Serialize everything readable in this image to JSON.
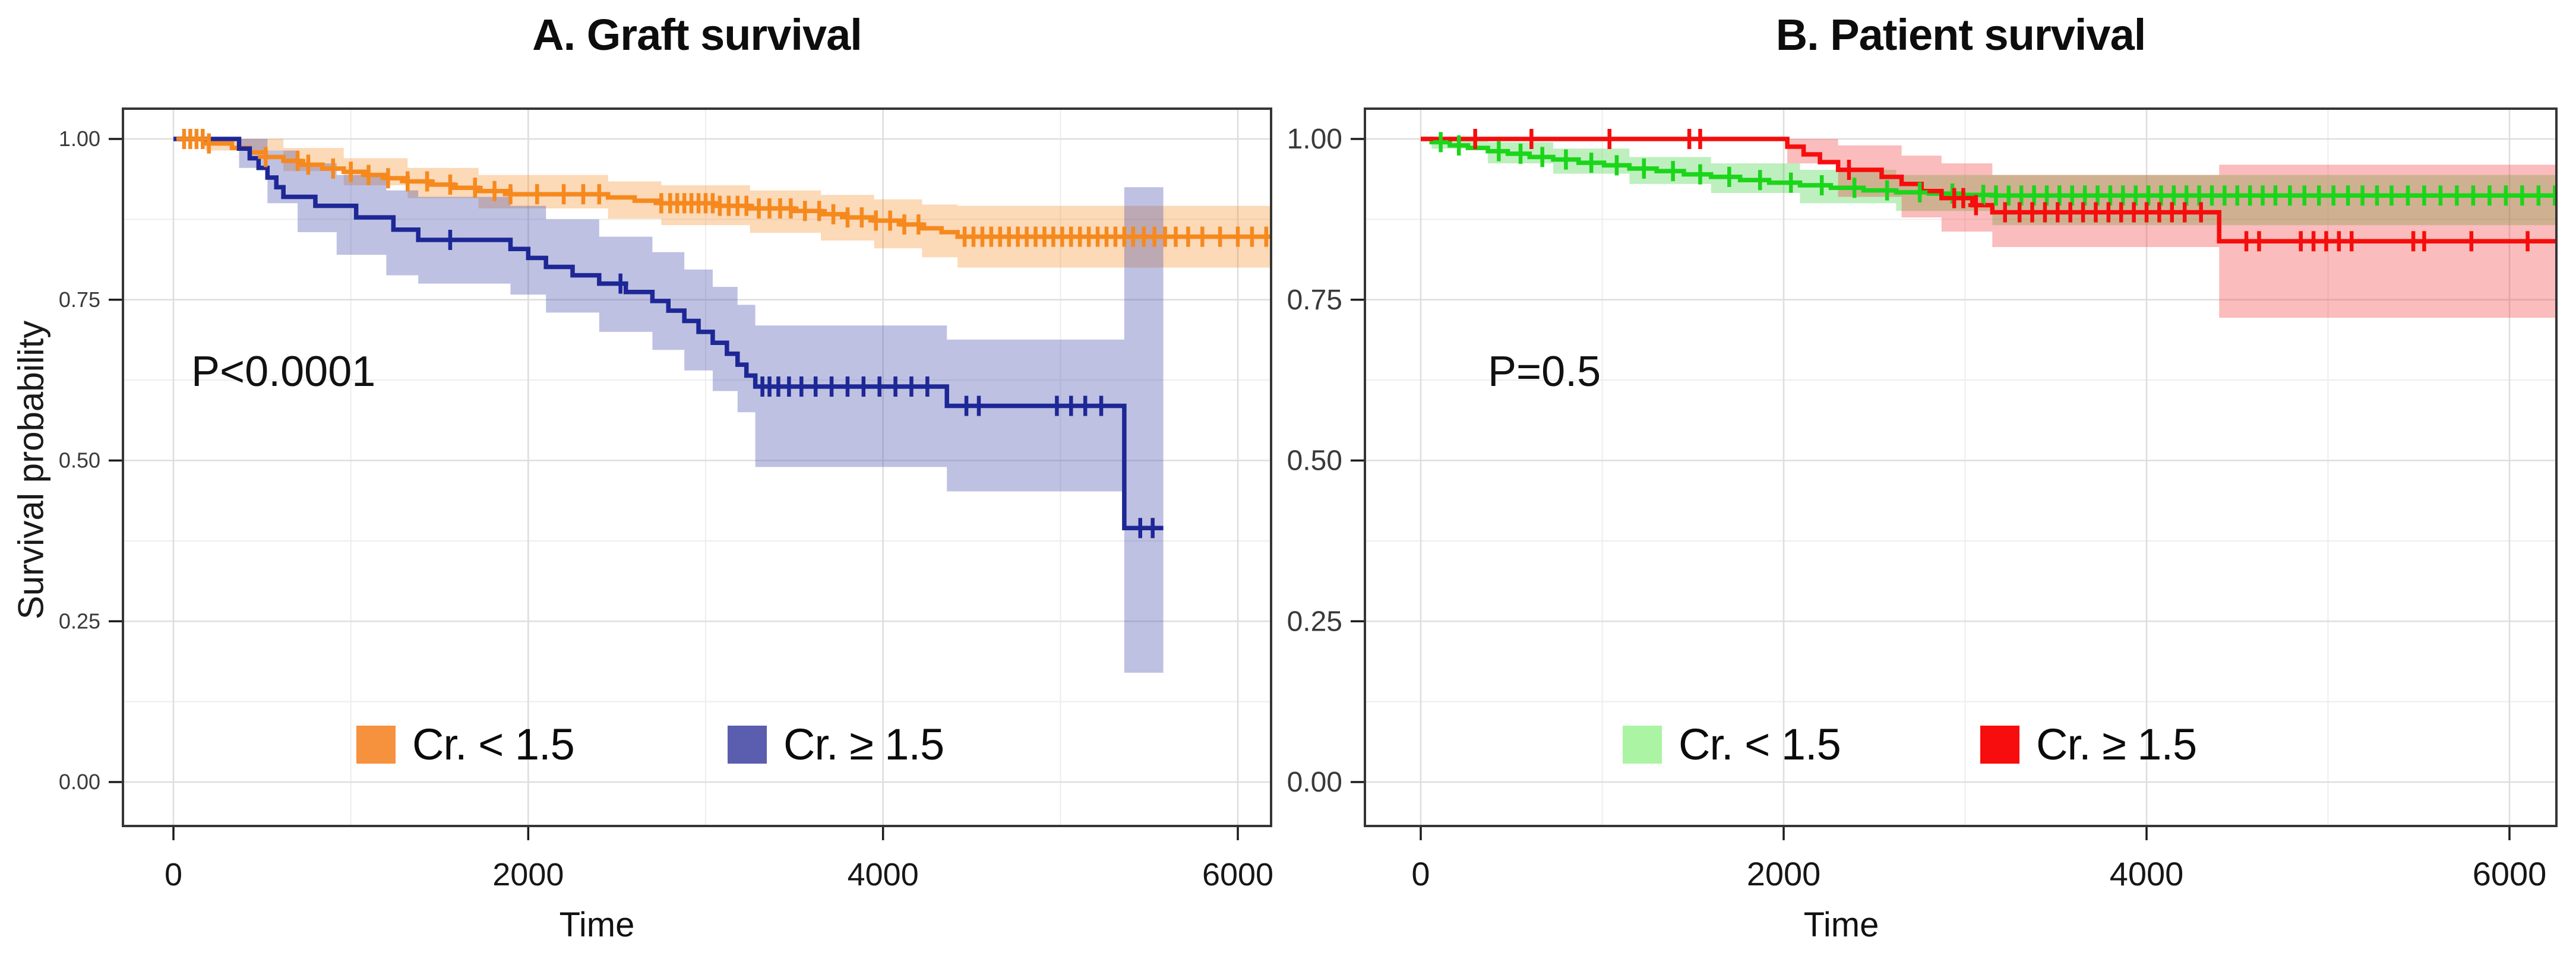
{
  "figure_title": "",
  "chart_data": [
    {
      "type": "km_step",
      "panel": "A",
      "title": "A. Graft survival",
      "pvalue_label": "P<0.0001",
      "xlabel": "Time",
      "ylabel": "Survival probability",
      "xlim": [
        -285,
        6190
      ],
      "ylim": [
        -0.07,
        1.05
      ],
      "grid": true,
      "legend_position": "bottom-inside",
      "x_ticks": [
        0,
        2000,
        4000,
        6000
      ],
      "x_tick_labels": [
        "0",
        "2000",
        "4000",
        "6000"
      ],
      "x_minor": [
        1000,
        3000,
        5000
      ],
      "y_tick_values": [
        1.0,
        0.75,
        0.5,
        0.25,
        0.0
      ],
      "y_tick_labels": [
        "1.00",
        "0.75",
        "0.50",
        "0.25",
        "0.00"
      ],
      "y_minor": [
        0.875,
        0.625,
        0.375,
        0.125
      ],
      "series": [
        {
          "name": "Cr. < 1.5",
          "color": "#F6891E",
          "swatch_color": "#F6913E",
          "band_color": "#F6891E",
          "band_opacity": 0.32,
          "steps": [
            [
              0,
              1.0
            ],
            [
              180,
              0.993
            ],
            [
              330,
              0.986
            ],
            [
              430,
              0.979
            ],
            [
              520,
              0.972
            ],
            [
              620,
              0.966
            ],
            [
              720,
              0.96
            ],
            [
              840,
              0.954
            ],
            [
              960,
              0.949
            ],
            [
              1080,
              0.944
            ],
            [
              1200,
              0.939
            ],
            [
              1320,
              0.934
            ],
            [
              1450,
              0.929
            ],
            [
              1580,
              0.924
            ],
            [
              1720,
              0.919
            ],
            [
              1900,
              0.914
            ],
            [
              2450,
              0.909
            ],
            [
              2600,
              0.904
            ],
            [
              2750,
              0.9
            ],
            [
              3050,
              0.896
            ],
            [
              3250,
              0.892
            ],
            [
              3500,
              0.888
            ],
            [
              3650,
              0.883
            ],
            [
              3800,
              0.878
            ],
            [
              3950,
              0.873
            ],
            [
              4100,
              0.867
            ],
            [
              4220,
              0.861
            ],
            [
              4330,
              0.855
            ],
            [
              4420,
              0.848
            ],
            [
              6300,
              0.848
            ]
          ],
          "censors": [
            60,
            95,
            130,
            165,
            200,
            520,
            700,
            760,
            900,
            1000,
            1100,
            1210,
            1320,
            1430,
            1560,
            1700,
            1810,
            1900,
            2050,
            2200,
            2310,
            2400,
            2750,
            2800,
            2840,
            2880,
            2920,
            2960,
            3000,
            3040,
            3080,
            3130,
            3180,
            3230,
            3300,
            3360,
            3420,
            3480,
            3560,
            3640,
            3720,
            3800,
            3880,
            3960,
            4040,
            4120,
            4200,
            4460,
            4510,
            4560,
            4610,
            4660,
            4710,
            4760,
            4810,
            4860,
            4910,
            4960,
            5010,
            5060,
            5110,
            5160,
            5210,
            5260,
            5310,
            5360,
            5410,
            5470,
            5530,
            5590,
            5650,
            5720,
            5800,
            5900,
            6000,
            6080,
            6160,
            6230
          ],
          "band": [
            [
              180,
              0.982,
              1.0
            ],
            [
              620,
              0.95,
              0.986
            ],
            [
              960,
              0.928,
              0.97
            ],
            [
              1320,
              0.908,
              0.955
            ],
            [
              1720,
              0.892,
              0.944
            ],
            [
              2450,
              0.876,
              0.934
            ],
            [
              2750,
              0.866,
              0.928
            ],
            [
              3250,
              0.854,
              0.92
            ],
            [
              3650,
              0.842,
              0.913
            ],
            [
              3950,
              0.83,
              0.906
            ],
            [
              4220,
              0.816,
              0.898
            ],
            [
              4420,
              0.8,
              0.896
            ],
            [
              6300,
              0.8,
              0.896
            ]
          ]
        },
        {
          "name": "Cr. ≥ 1.5",
          "color": "#1E2796",
          "swatch_color": "#5B5EAE",
          "band_color": "#4A52B0",
          "band_opacity": 0.36,
          "steps": [
            [
              0,
              1.0
            ],
            [
              370,
              0.985
            ],
            [
              430,
              0.97
            ],
            [
              480,
              0.955
            ],
            [
              530,
              0.94
            ],
            [
              580,
              0.925
            ],
            [
              620,
              0.91
            ],
            [
              800,
              0.896
            ],
            [
              1030,
              0.878
            ],
            [
              1240,
              0.859
            ],
            [
              1380,
              0.843
            ],
            [
              1900,
              0.829
            ],
            [
              2000,
              0.815
            ],
            [
              2100,
              0.801
            ],
            [
              2250,
              0.788
            ],
            [
              2400,
              0.775
            ],
            [
              2550,
              0.762
            ],
            [
              2700,
              0.748
            ],
            [
              2790,
              0.733
            ],
            [
              2880,
              0.717
            ],
            [
              2960,
              0.7
            ],
            [
              3040,
              0.683
            ],
            [
              3120,
              0.666
            ],
            [
              3180,
              0.649
            ],
            [
              3230,
              0.632
            ],
            [
              3280,
              0.615
            ],
            [
              4360,
              0.585
            ],
            [
              5360,
              0.395
            ],
            [
              5580,
              0.395
            ]
          ],
          "censors": [
            1560,
            2520,
            3320,
            3360,
            3410,
            3470,
            3540,
            3620,
            3710,
            3800,
            3890,
            3980,
            4070,
            4160,
            4250,
            4470,
            4540,
            4980,
            5060,
            5140,
            5230,
            5450,
            5520
          ],
          "band": [
            [
              370,
              0.955,
              1.0
            ],
            [
              530,
              0.9,
              0.982
            ],
            [
              700,
              0.855,
              0.962
            ],
            [
              920,
              0.82,
              0.944
            ],
            [
              1200,
              0.788,
              0.92
            ],
            [
              1380,
              0.775,
              0.91
            ],
            [
              1900,
              0.758,
              0.896
            ],
            [
              2100,
              0.73,
              0.875
            ],
            [
              2400,
              0.7,
              0.848
            ],
            [
              2700,
              0.672,
              0.824
            ],
            [
              2880,
              0.64,
              0.797
            ],
            [
              3040,
              0.608,
              0.77
            ],
            [
              3180,
              0.575,
              0.742
            ],
            [
              3280,
              0.49,
              0.71
            ],
            [
              4360,
              0.452,
              0.688
            ],
            [
              5360,
              0.17,
              0.925
            ],
            [
              5580,
              0.17,
              0.925
            ]
          ]
        }
      ]
    },
    {
      "type": "km_step",
      "panel": "B",
      "title": "B. Patient survival",
      "pvalue_label": "P=0.5",
      "xlabel": "Time",
      "ylabel": "",
      "xlim": [
        -308,
        6260
      ],
      "ylim": [
        -0.07,
        1.05
      ],
      "grid": true,
      "legend_position": "bottom-inside",
      "x_ticks": [
        0,
        2000,
        4000,
        6000
      ],
      "x_tick_labels": [
        "0",
        "2000",
        "4000",
        "6000"
      ],
      "x_minor": [
        1000,
        3000,
        5000
      ],
      "y_tick_values": [
        1.0,
        0.75,
        0.5,
        0.25,
        0.0
      ],
      "y_tick_labels": [
        "1.00",
        "0.75",
        "0.50",
        "0.25",
        "0.00"
      ],
      "y_minor": [
        0.875,
        0.625,
        0.375,
        0.125
      ],
      "series": [
        {
          "name": "Cr. < 1.5",
          "color": "#1BD51B",
          "swatch_color": "#ABF4A3",
          "band_color": "#45D245",
          "band_opacity": 0.35,
          "steps": [
            [
              0,
              1.0
            ],
            [
              60,
              0.995
            ],
            [
              160,
              0.99
            ],
            [
              260,
              0.986
            ],
            [
              370,
              0.981
            ],
            [
              480,
              0.977
            ],
            [
              600,
              0.972
            ],
            [
              730,
              0.968
            ],
            [
              870,
              0.963
            ],
            [
              1010,
              0.959
            ],
            [
              1150,
              0.954
            ],
            [
              1300,
              0.95
            ],
            [
              1450,
              0.945
            ],
            [
              1600,
              0.941
            ],
            [
              1760,
              0.936
            ],
            [
              1920,
              0.932
            ],
            [
              2090,
              0.928
            ],
            [
              2260,
              0.924
            ],
            [
              2440,
              0.92
            ],
            [
              2620,
              0.917
            ],
            [
              2800,
              0.915
            ],
            [
              2990,
              0.913
            ],
            [
              3150,
              0.912
            ],
            [
              6300,
              0.912
            ]
          ],
          "censors": [
            110,
            210,
            430,
            550,
            670,
            800,
            940,
            1080,
            1230,
            1390,
            1540,
            1700,
            1870,
            2040,
            2210,
            2390,
            2570,
            2750,
            2930,
            3100,
            3170,
            3240,
            3310,
            3380,
            3450,
            3520,
            3590,
            3660,
            3730,
            3800,
            3870,
            3940,
            4010,
            4080,
            4150,
            4220,
            4290,
            4360,
            4430,
            4500,
            4570,
            4640,
            4710,
            4790,
            4870,
            4950,
            5030,
            5110,
            5190,
            5270,
            5350,
            5440,
            5530,
            5620,
            5710,
            5800,
            5890,
            5980,
            6070,
            6160,
            6250
          ],
          "band": [
            [
              60,
              0.985,
              1.0
            ],
            [
              370,
              0.962,
              0.995
            ],
            [
              730,
              0.946,
              0.985
            ],
            [
              1150,
              0.93,
              0.972
            ],
            [
              1600,
              0.916,
              0.962
            ],
            [
              2090,
              0.9,
              0.952
            ],
            [
              2620,
              0.888,
              0.944
            ],
            [
              3150,
              0.866,
              0.944
            ],
            [
              6300,
              0.866,
              0.944
            ]
          ]
        },
        {
          "name": "Cr. ≥ 1.5",
          "color": "#F60D0D",
          "swatch_color": "#F70D0D",
          "band_color": "#F04040",
          "band_opacity": 0.35,
          "steps": [
            [
              0,
              1.0
            ],
            [
              2020,
              0.988
            ],
            [
              2110,
              0.976
            ],
            [
              2200,
              0.964
            ],
            [
              2300,
              0.952
            ],
            [
              2540,
              0.941
            ],
            [
              2650,
              0.93
            ],
            [
              2760,
              0.919
            ],
            [
              2870,
              0.908
            ],
            [
              3040,
              0.897
            ],
            [
              3150,
              0.886
            ],
            [
              4400,
              0.841
            ],
            [
              6300,
              0.841
            ]
          ],
          "censors": [
            300,
            610,
            1040,
            1480,
            1540,
            2360,
            2940,
            2990,
            3060,
            3220,
            3300,
            3370,
            3440,
            3510,
            3580,
            3650,
            3720,
            3790,
            3860,
            3930,
            4000,
            4070,
            4140,
            4210,
            4300,
            4550,
            4620,
            4850,
            4920,
            4990,
            5060,
            5130,
            5470,
            5530,
            5790,
            6100,
            6280
          ],
          "band": [
            [
              2020,
              0.962,
              1.0
            ],
            [
              2300,
              0.91,
              0.99
            ],
            [
              2650,
              0.878,
              0.974
            ],
            [
              2870,
              0.856,
              0.962
            ],
            [
              3150,
              0.832,
              0.944
            ],
            [
              4400,
              0.722,
              0.96
            ],
            [
              6300,
              0.722,
              0.96
            ]
          ]
        }
      ]
    }
  ]
}
